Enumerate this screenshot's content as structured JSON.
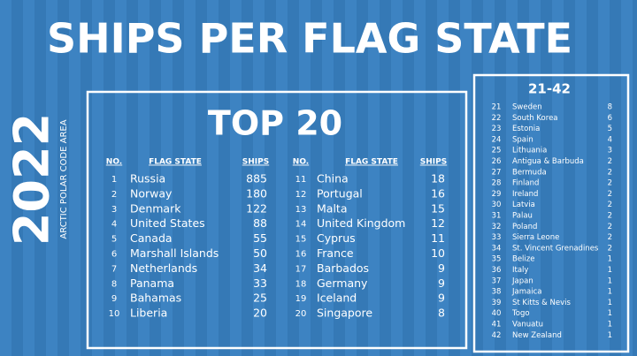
{
  "header": {
    "title": "SHIPS PER FLAG STATE"
  },
  "side": {
    "year": "2022",
    "subtitle": "ARCTIC POLAR CODE AREA"
  },
  "top20": {
    "title": "TOP 20",
    "headers": [
      "NO.",
      "FLAG STATE",
      "SHIPS"
    ],
    "rows": [
      [
        1,
        "Russia",
        885
      ],
      [
        2,
        "Norway",
        180
      ],
      [
        3,
        "Denmark",
        122
      ],
      [
        4,
        "United States",
        88
      ],
      [
        5,
        "Canada",
        55
      ],
      [
        6,
        "Marshall Islands",
        50
      ],
      [
        7,
        "Netherlands",
        34
      ],
      [
        8,
        "Panama",
        33
      ],
      [
        9,
        "Bahamas",
        25
      ],
      [
        10,
        "Liberia",
        20
      ],
      [
        11,
        "China",
        18
      ],
      [
        12,
        "Portugal",
        16
      ],
      [
        13,
        "Malta",
        15
      ],
      [
        14,
        "United Kingdom",
        12
      ],
      [
        15,
        "Cyprus",
        11
      ],
      [
        16,
        "France",
        10
      ],
      [
        17,
        "Barbados",
        9
      ],
      [
        18,
        "Germany",
        9
      ],
      [
        19,
        "Iceland",
        9
      ],
      [
        20,
        "Singapore",
        8
      ]
    ]
  },
  "others": {
    "title": "21-42",
    "rows": [
      [
        21,
        "Sweden",
        8
      ],
      [
        22,
        "South Korea",
        6
      ],
      [
        23,
        "Estonia",
        5
      ],
      [
        24,
        "Spain",
        4
      ],
      [
        25,
        "Lithuania",
        3
      ],
      [
        26,
        "Antigua & Barbuda",
        2
      ],
      [
        27,
        "Bermuda",
        2
      ],
      [
        28,
        "Finland",
        2
      ],
      [
        29,
        "Ireland",
        2
      ],
      [
        30,
        "Latvia",
        2
      ],
      [
        31,
        "Palau",
        2
      ],
      [
        32,
        "Poland",
        2
      ],
      [
        33,
        "Sierra Leone",
        2
      ],
      [
        34,
        "St. Vincent Grenadines",
        2
      ],
      [
        35,
        "Belize",
        1
      ],
      [
        36,
        "Italy",
        1
      ],
      [
        37,
        "Japan",
        1
      ],
      [
        38,
        "Jamaica",
        1
      ],
      [
        39,
        "St Kitts & Nevis",
        1
      ],
      [
        40,
        "Togo",
        1
      ],
      [
        41,
        "Vanuatu",
        1
      ],
      [
        42,
        "New Zealand",
        1
      ]
    ]
  }
}
